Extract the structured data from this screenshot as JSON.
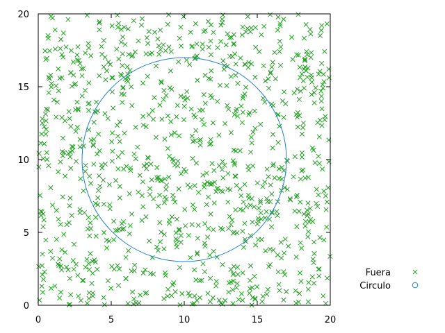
{
  "chart_data": {
    "type": "scatter",
    "title": "",
    "xlabel": "",
    "ylabel": "",
    "xlim": [
      0,
      20
    ],
    "ylim": [
      0,
      20
    ],
    "x_ticks": [
      "0",
      "5",
      "10",
      "15",
      "20"
    ],
    "y_ticks": [
      "0",
      "5",
      "10",
      "15",
      "20"
    ],
    "grid": false,
    "legend_position": "right",
    "series": [
      {
        "name": "Fuera",
        "marker": "x",
        "color": "#22a022",
        "count_estimate": 1000,
        "distribution": "uniform",
        "x_range": [
          0,
          20
        ],
        "y_range": [
          0,
          20
        ]
      },
      {
        "name": "Circulo",
        "marker": "circle-line",
        "color": "#1f7fd0",
        "center": [
          10,
          10
        ],
        "radius": 7
      }
    ]
  }
}
